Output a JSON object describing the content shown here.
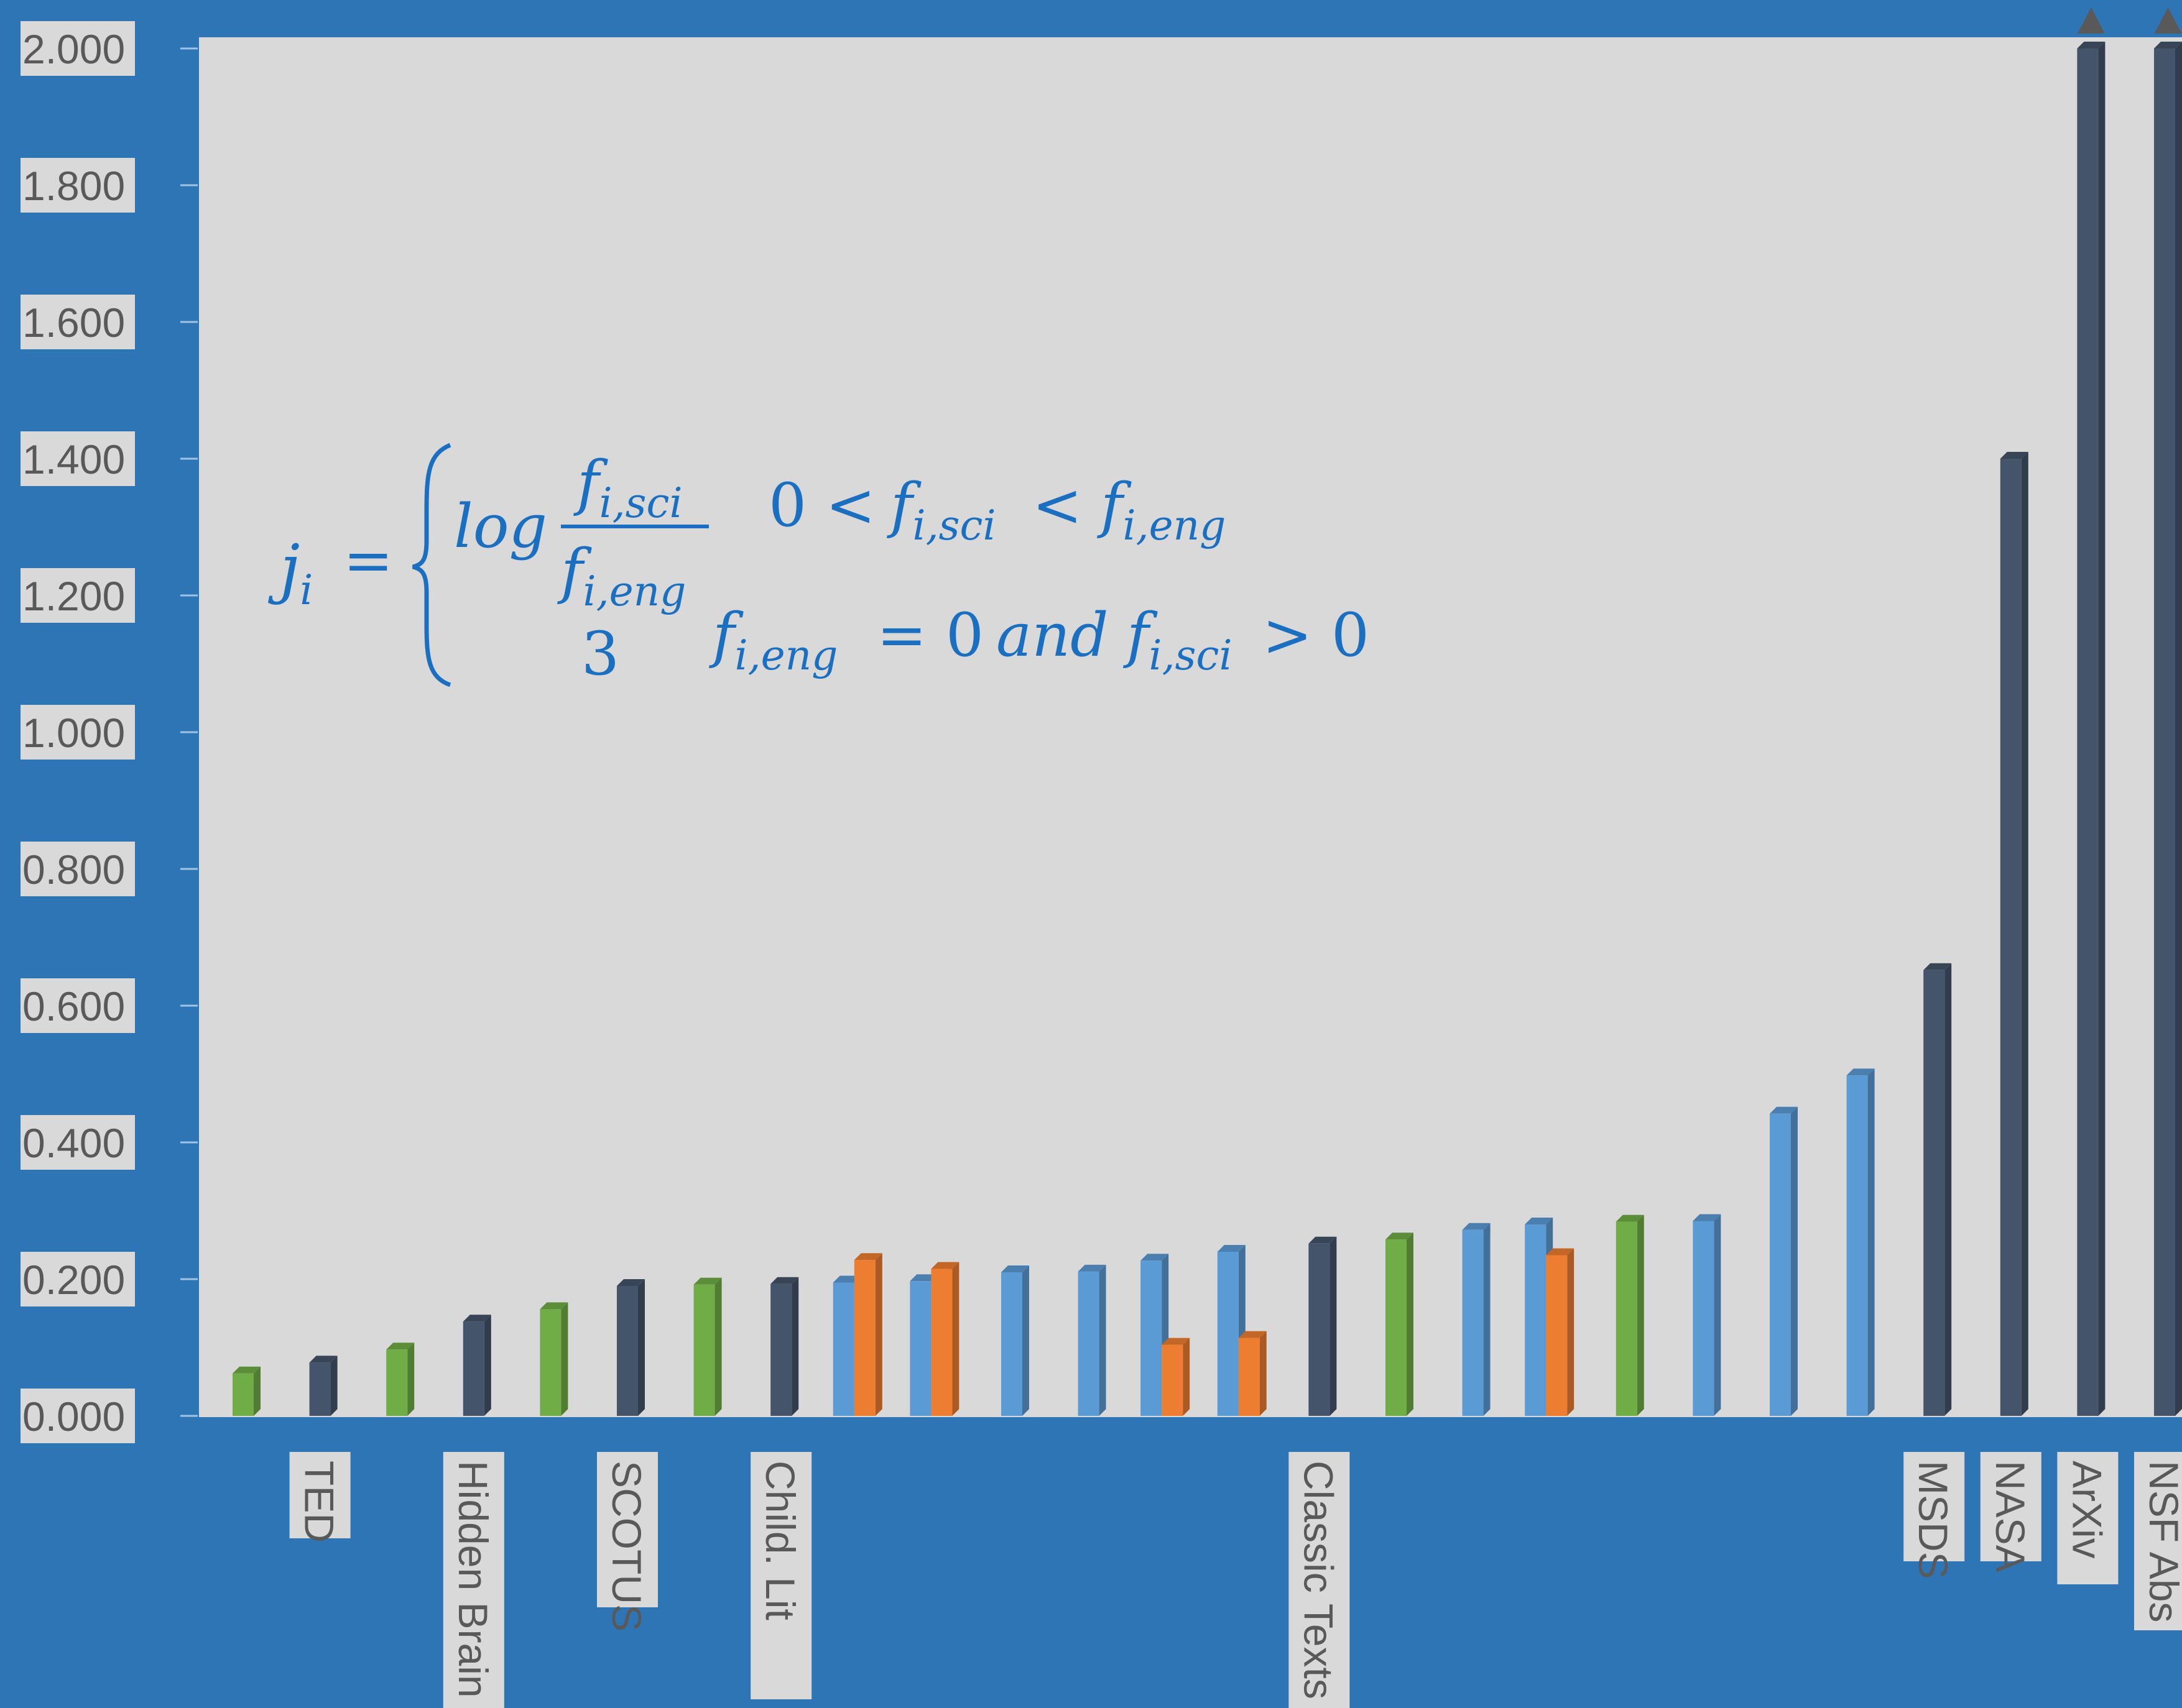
{
  "chart_data": {
    "type": "bar",
    "ylim": [
      0,
      2.0
    ],
    "y_ticks": [
      "0.000",
      "0.200",
      "0.400",
      "0.600",
      "0.800",
      "1.000",
      "1.200",
      "1.400",
      "1.600",
      "1.800",
      "2.000"
    ],
    "grid": false,
    "legend": "none",
    "colors": {
      "dark": "#44546a",
      "green": "#70ad47",
      "blue": "#5b9bd5",
      "orange": "#ed7d31",
      "plot_bg": "#d9d9d9",
      "frame_bg": "#2e75b6",
      "formula": "#1a6fc1"
    },
    "slots": [
      {
        "label": "",
        "bars": [
          {
            "value": 0.062,
            "color": "green"
          }
        ]
      },
      {
        "label": "TED",
        "bars": [
          {
            "value": 0.078,
            "color": "dark"
          }
        ]
      },
      {
        "label": "",
        "bars": [
          {
            "value": 0.097,
            "color": "green"
          }
        ]
      },
      {
        "label": "Hidden Brain",
        "bars": [
          {
            "value": 0.138,
            "color": "dark"
          }
        ]
      },
      {
        "label": "",
        "bars": [
          {
            "value": 0.156,
            "color": "green"
          }
        ]
      },
      {
        "label": "SCOTUS",
        "bars": [
          {
            "value": 0.19,
            "color": "dark"
          }
        ]
      },
      {
        "label": "",
        "bars": [
          {
            "value": 0.192,
            "color": "green"
          }
        ]
      },
      {
        "label": "Child. Lit",
        "bars": [
          {
            "value": 0.193,
            "color": "dark"
          }
        ]
      },
      {
        "label": "",
        "bars": [
          {
            "value": 0.195,
            "color": "blue"
          },
          {
            "value": 0.228,
            "color": "orange"
          }
        ]
      },
      {
        "label": "",
        "bars": [
          {
            "value": 0.197,
            "color": "blue"
          },
          {
            "value": 0.215,
            "color": "orange"
          }
        ]
      },
      {
        "label": "",
        "bars": [
          {
            "value": 0.21,
            "color": "blue"
          }
        ]
      },
      {
        "label": "",
        "bars": [
          {
            "value": 0.211,
            "color": "blue"
          }
        ]
      },
      {
        "label": "",
        "bars": [
          {
            "value": 0.227,
            "color": "blue"
          },
          {
            "value": 0.104,
            "color": "orange"
          }
        ]
      },
      {
        "label": "",
        "bars": [
          {
            "value": 0.24,
            "color": "blue"
          },
          {
            "value": 0.114,
            "color": "orange"
          }
        ]
      },
      {
        "label": "Classic Texts",
        "bars": [
          {
            "value": 0.252,
            "color": "dark"
          }
        ]
      },
      {
        "label": "",
        "bars": [
          {
            "value": 0.258,
            "color": "green"
          }
        ]
      },
      {
        "label": "",
        "bars": [
          {
            "value": 0.272,
            "color": "blue"
          }
        ]
      },
      {
        "label": "",
        "bars": [
          {
            "value": 0.28,
            "color": "blue"
          },
          {
            "value": 0.235,
            "color": "orange"
          }
        ]
      },
      {
        "label": "",
        "bars": [
          {
            "value": 0.284,
            "color": "green"
          }
        ]
      },
      {
        "label": "",
        "bars": [
          {
            "value": 0.285,
            "color": "blue"
          }
        ]
      },
      {
        "label": "",
        "bars": [
          {
            "value": 0.442,
            "color": "blue"
          }
        ]
      },
      {
        "label": "",
        "bars": [
          {
            "value": 0.498,
            "color": "blue"
          }
        ]
      },
      {
        "label": "MSDS",
        "bars": [
          {
            "value": 0.652,
            "color": "dark"
          }
        ]
      },
      {
        "label": "NASA",
        "bars": [
          {
            "value": 1.4,
            "color": "dark"
          }
        ]
      },
      {
        "label": "ArXiv",
        "bars": [
          {
            "value": 2.0,
            "color": "dark",
            "overflow": true
          }
        ]
      },
      {
        "label": "NSF Abs",
        "bars": [
          {
            "value": 2.0,
            "color": "dark",
            "overflow": true
          }
        ]
      }
    ]
  },
  "formula": {
    "lhs": "j",
    "lhs_sub": "i",
    "equals": "=",
    "case1_fn": "log",
    "case1_num": "f",
    "case1_num_sub": "i,sci",
    "case1_den": "f",
    "case1_den_sub": "i,eng",
    "case1_cond_left": "0 <",
    "case1_cond_f1": "f",
    "case1_cond_f1_sub": "i,sci",
    "case1_cond_mid": "<",
    "case1_cond_f2": "f",
    "case1_cond_f2_sub": "i,eng",
    "case2_val": "3",
    "case2_f1": "f",
    "case2_f1_sub": "i,eng",
    "case2_mid": "= 0",
    "case2_and": "and",
    "case2_f2": "f",
    "case2_f2_sub": "i,sci",
    "case2_end": "> 0"
  }
}
